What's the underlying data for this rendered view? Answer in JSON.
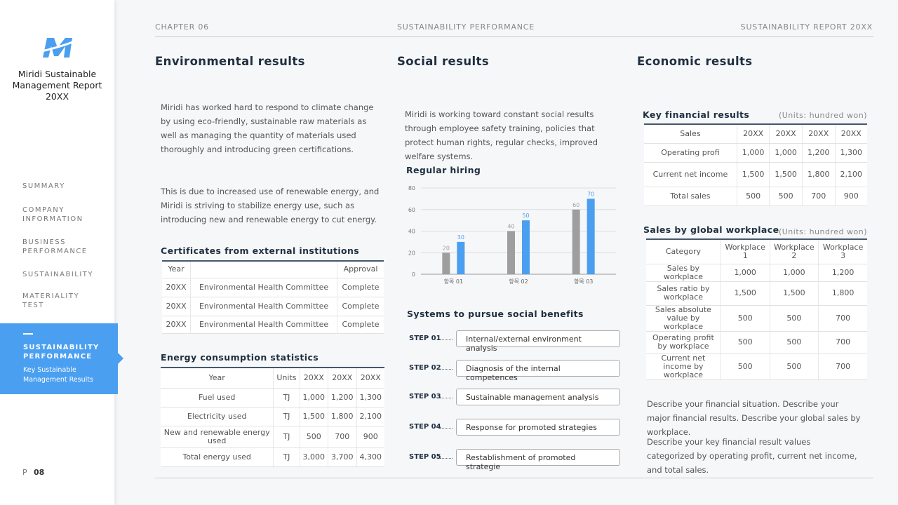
{
  "sidebar": {
    "report_title": "Miridi Sustainable Management Report 20XX",
    "nav": [
      "SUMMARY",
      "COMPANY INFORMATION",
      "BUSINESS PERFORMANCE",
      "SUSTAINABILITY",
      "MATERIALITY TEST"
    ],
    "active": {
      "title": "SUSTAINABILITY PERFORMANCE",
      "subtitle": "Key Sustainable Management Results"
    },
    "page_label": "P",
    "page_number": "08"
  },
  "header": {
    "chapter": "CHAPTER 06",
    "section": "SUSTAINABILITY PERFORMANCE",
    "report": "SUSTAINABILITY REPORT 20XX"
  },
  "environmental": {
    "title": "Environmental results",
    "paragraphs": [
      "Miridi has worked hard to respond to climate change by using eco-friendly, sustainable raw materials as well as managing the quantity of materials used thoroughly and introducing green certifications.",
      "This is due to increased use of renewable energy, and Miridi is striving to stabilize energy use, such as introducing new and renewable energy to cut energy."
    ],
    "certificates": {
      "title": "Certificates from external institutions",
      "header": {
        "year": "Year",
        "approval": "Approval"
      },
      "rows": [
        [
          "20XX",
          "Environmental Health Committee",
          "Complete"
        ],
        [
          "20XX",
          "Environmental Health Committee",
          "Complete"
        ],
        [
          "20XX",
          "Environmental Health Committee",
          "Complete"
        ]
      ]
    },
    "energy": {
      "title": "Energy consumption statistics",
      "header": [
        "Year",
        "Units",
        "20XX",
        "20XX",
        "20XX"
      ],
      "rows": [
        [
          "Fuel used",
          "TJ",
          "1,000",
          "1,200",
          "1,300"
        ],
        [
          "Electricity used",
          "TJ",
          "1,500",
          "1,800",
          "2,100"
        ],
        [
          "New and renewable energy used",
          "TJ",
          "500",
          "700",
          "900"
        ],
        [
          "Total energy used",
          "TJ",
          "3,000",
          "3,700",
          "4,300"
        ]
      ]
    }
  },
  "social": {
    "title": "Social results",
    "paragraph": "Miridi is working toward constant social results through employee safety training, policies that protect human rights, regular checks, improved welfare systems.",
    "hiring": {
      "type": "bar",
      "title": "Regular hiring",
      "categories": [
        "항목 01",
        "항목 02",
        "항목 03"
      ],
      "series": [
        {
          "color": "#9e9e9e",
          "values": [
            20,
            40,
            60
          ]
        },
        {
          "color": "#4a9ff0",
          "values": [
            30,
            50,
            70
          ]
        }
      ],
      "ylim": [
        0,
        80
      ],
      "yticks": [
        0,
        20,
        40,
        60,
        80
      ],
      "grid": true
    },
    "systems": {
      "title": "Systems to pursue social benefits",
      "steps": [
        {
          "label": "STEP 01",
          "text": "Internal/external environment analysis"
        },
        {
          "label": "STEP 02",
          "text": "Diagnosis of the internal competences"
        },
        {
          "label": "STEP 03",
          "text": "Sustainable management analysis"
        },
        {
          "label": "STEP 04",
          "text": "Response for promoted strategies"
        },
        {
          "label": "STEP 05",
          "text": "Restablishment of promoted strategie"
        }
      ]
    }
  },
  "economic": {
    "title": "Economic results",
    "key_financial": {
      "title": "Key financial results",
      "units": "(Units: hundred won)",
      "header": [
        "Sales",
        "20XX",
        "20XX",
        "20XX",
        "20XX"
      ],
      "rows": [
        [
          "Operating profi",
          "1,000",
          "1,000",
          "1,200",
          "1,300"
        ],
        [
          "Current net income",
          "1,500",
          "1,500",
          "1,800",
          "2,100"
        ],
        [
          "Total sales",
          "500",
          "500",
          "700",
          "900"
        ]
      ]
    },
    "global": {
      "title": "Sales by global workplace",
      "units": "(Units: hundred won)",
      "header": [
        "Category",
        "Workplace 1",
        "Workplace 2",
        "Workplace 3"
      ],
      "rows": [
        [
          "Sales by workplace",
          "1,000",
          "1,000",
          "1,200"
        ],
        [
          "Sales ratio by workplace",
          "1,500",
          "1,500",
          "1,800"
        ],
        [
          "Sales absolute value by workplace",
          "500",
          "500",
          "700"
        ],
        [
          "Operating profit by workplace",
          "500",
          "500",
          "700"
        ],
        [
          "Current net income by workplace",
          "500",
          "500",
          "700"
        ]
      ]
    },
    "paragraphs": [
      "Describe your financial situation. Describe your major financial results. Describe your global sales by workplace.",
      "Describe your key financial result values categorized by operating profit, current net income, and total sales."
    ]
  }
}
